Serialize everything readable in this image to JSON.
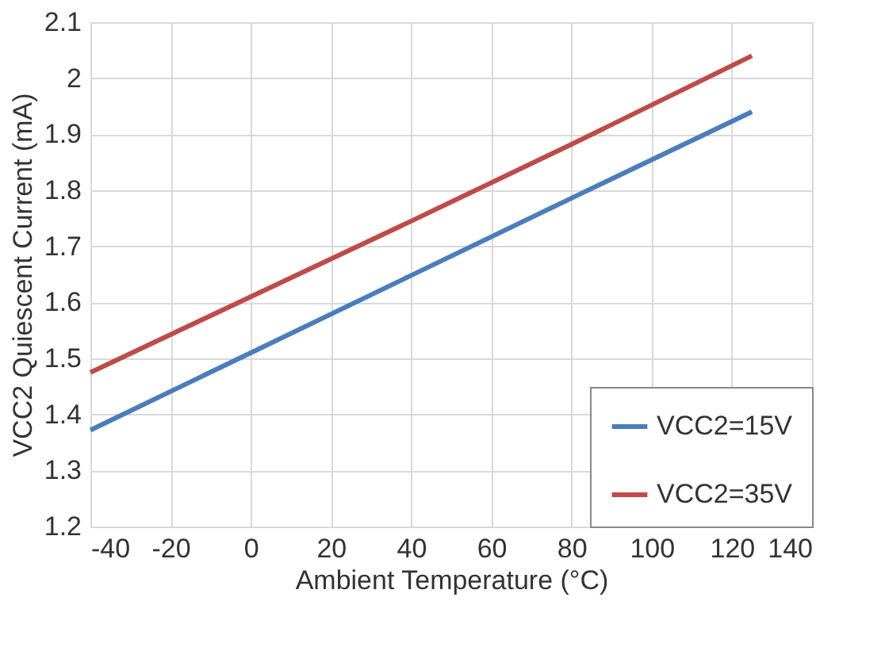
{
  "chart_data": {
    "type": "line",
    "xlabel": "Ambient Temperature (°C)",
    "ylabel": "VCC2 Quiescent Current (mA)",
    "series": [
      {
        "name": "VCC2=15V",
        "color": "#4a7ebb",
        "x": [
          -40,
          0,
          40,
          80,
          125
        ],
        "values": [
          1.372,
          1.51,
          1.648,
          1.786,
          1.94
        ]
      },
      {
        "name": "VCC2=35V",
        "color": "#be4b48",
        "x": [
          -40,
          0,
          40,
          80,
          125
        ],
        "values": [
          1.475,
          1.61,
          1.745,
          1.882,
          2.04
        ]
      }
    ],
    "xlim": [
      -40,
      140
    ],
    "xticks": [
      -40,
      -20,
      0,
      20,
      40,
      60,
      80,
      100,
      120,
      140
    ],
    "ylim": [
      1.2,
      2.1
    ],
    "yticks": [
      1.2,
      1.3,
      1.4,
      1.5,
      1.6,
      1.7,
      1.8,
      1.9,
      2,
      2.1
    ],
    "grid": true,
    "legend": "bottom right",
    "marker": "none",
    "line_style": "solid"
  }
}
